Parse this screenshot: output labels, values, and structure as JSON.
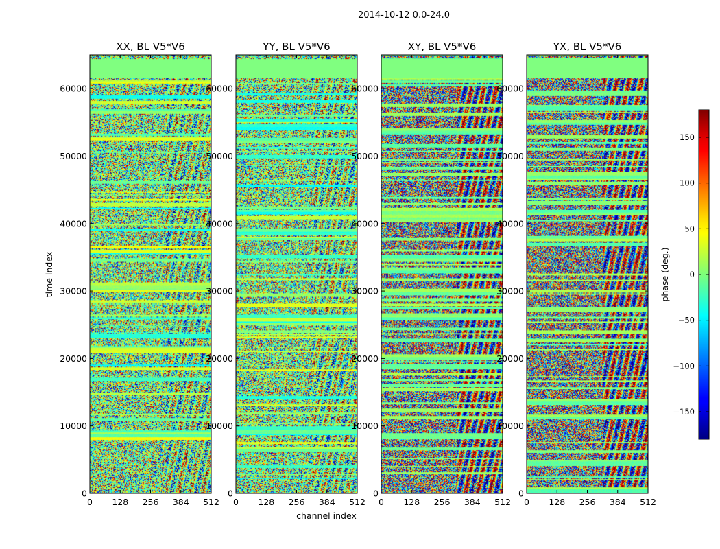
{
  "chart_data": {
    "type": "heatmap",
    "title": "2014-10-12 0.0-24.0",
    "xlabel": "channel index",
    "ylabel": "time index",
    "xlim": [
      0,
      512
    ],
    "ylim": [
      0,
      65000
    ],
    "x_ticks": [
      0,
      128,
      256,
      384,
      512
    ],
    "y_ticks": [
      0,
      10000,
      20000,
      30000,
      40000,
      50000,
      60000
    ],
    "colormap": "jet",
    "colorbar": {
      "label": "phase (deg.)",
      "range": [
        -180,
        180
      ],
      "ticks": [
        -150,
        -100,
        -50,
        0,
        50,
        100,
        150
      ],
      "tick_labels": [
        "−150",
        "−100",
        "−50",
        "0",
        "50",
        "100",
        "150"
      ]
    },
    "panels": [
      {
        "title": "XX, BL V5*V6"
      },
      {
        "title": "YY, BL V5*V6"
      },
      {
        "title": "XY, BL V5*V6"
      },
      {
        "title": "YX, BL V5*V6"
      }
    ]
  }
}
